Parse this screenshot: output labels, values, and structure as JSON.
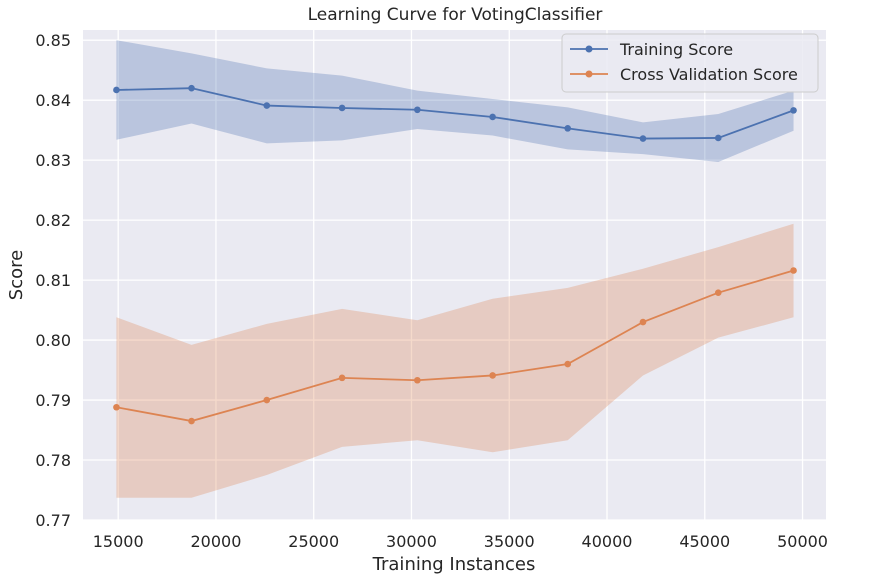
{
  "chart_data": {
    "type": "line",
    "title": "Learning Curve for VotingClassifier",
    "xlabel": "Training Instances",
    "ylabel": "Score",
    "xlim": [
      13200,
      51200
    ],
    "ylim": [
      0.77,
      0.8517
    ],
    "xticks": [
      15000,
      20000,
      25000,
      30000,
      35000,
      40000,
      45000,
      50000
    ],
    "yticks": [
      0.77,
      0.78,
      0.79,
      0.8,
      0.81,
      0.82,
      0.83,
      0.84,
      0.85
    ],
    "ytick_labels": [
      "0.77",
      "0.78",
      "0.79",
      "0.80",
      "0.81",
      "0.82",
      "0.83",
      "0.84",
      "0.85"
    ],
    "grid": true,
    "legend_position": "top-right",
    "x": [
      14910,
      18750,
      22600,
      26450,
      30300,
      34150,
      37990,
      41840,
      45690,
      49540
    ],
    "series": [
      {
        "name": "Training Score",
        "color": "#4c72b0",
        "values": [
          0.8417,
          0.842,
          0.8391,
          0.8387,
          0.8384,
          0.8372,
          0.8353,
          0.8336,
          0.8337,
          0.8383
        ],
        "upper": [
          0.85,
          0.8478,
          0.8453,
          0.8441,
          0.8416,
          0.8402,
          0.8388,
          0.8363,
          0.8377,
          0.8416
        ],
        "lower": [
          0.8334,
          0.8361,
          0.8328,
          0.8333,
          0.8352,
          0.8341,
          0.8318,
          0.831,
          0.8297,
          0.8349
        ]
      },
      {
        "name": "Cross Validation Score",
        "color": "#dd8452",
        "values": [
          0.7888,
          0.7865,
          0.79,
          0.7937,
          0.7933,
          0.7941,
          0.796,
          0.803,
          0.8079,
          0.8116
        ],
        "upper": [
          0.8038,
          0.7992,
          0.8027,
          0.8052,
          0.8033,
          0.8069,
          0.8087,
          0.8119,
          0.8155,
          0.8194
        ],
        "lower": [
          0.7737,
          0.7737,
          0.7775,
          0.7822,
          0.7833,
          0.7813,
          0.7833,
          0.7941,
          0.8004,
          0.8038
        ]
      }
    ]
  }
}
